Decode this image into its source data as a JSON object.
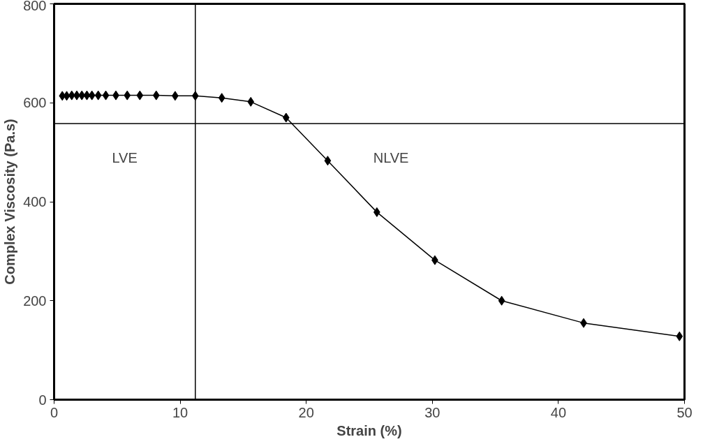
{
  "chart_data": {
    "type": "line",
    "xlabel": "Strain (%)",
    "ylabel": "Complex Viscosity (Pa.s)",
    "x": [
      0.65,
      1.0,
      1.4,
      1.8,
      2.2,
      2.6,
      3.0,
      3.5,
      4.1,
      4.9,
      5.8,
      6.8,
      8.1,
      9.6,
      11.2,
      13.3,
      15.6,
      18.4,
      21.7,
      25.6,
      30.2,
      35.5,
      42.0,
      49.6
    ],
    "series": [
      {
        "color": "#000000",
        "values": [
          614,
          614,
          615,
          615,
          615,
          615,
          615,
          615,
          615,
          615,
          615,
          615,
          615,
          614,
          614,
          610,
          602,
          570,
          483,
          379,
          282,
          200,
          155,
          128
        ]
      }
    ],
    "xlim": [
      0,
      50
    ],
    "xticks": [
      0,
      10,
      20,
      30,
      40,
      50
    ],
    "ylim": [
      0,
      800
    ],
    "yticks": [
      0,
      200,
      400,
      600,
      800
    ],
    "grid": false,
    "marker": "diamond",
    "line_style": "solid",
    "ref_lines": [
      {
        "axis": "x",
        "value": 11.2,
        "label": null
      },
      {
        "axis": "y",
        "value": 558,
        "label": null
      }
    ],
    "annotations": [
      "LVE",
      "NLVE"
    ]
  }
}
